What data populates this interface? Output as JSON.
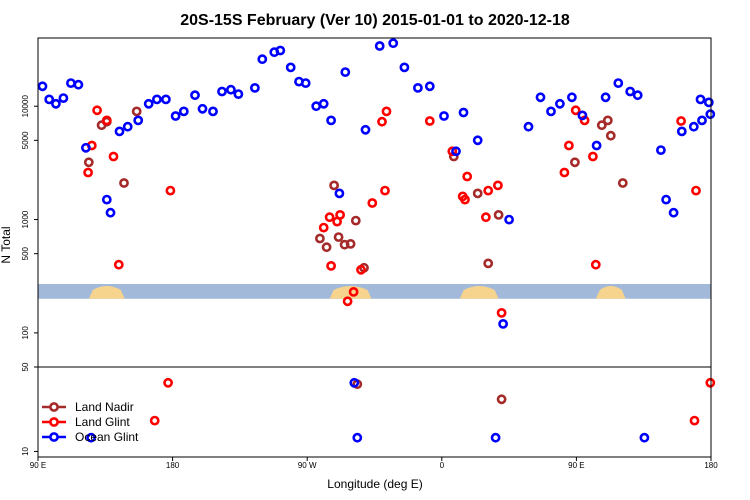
{
  "chart_data": {
    "type": "scatter",
    "title": "20S-15S February (Ver 10)   2015-01-01 to 2020-12-18",
    "xlabel": "Longitude (deg E)",
    "ylabel": "N Total",
    "xlim": [
      90,
      540
    ],
    "ylim": [
      10,
      40000
    ],
    "yscale": "log (broken: upper panel 50–40000, lower panel 10–50)",
    "grid": false,
    "legend_position": "bottom-left",
    "x_ticks": [
      {
        "value": 90,
        "label": "90 E"
      },
      {
        "value": 180,
        "label": "180"
      },
      {
        "value": 270,
        "label": "90 W"
      },
      {
        "value": 360,
        "label": "0"
      },
      {
        "value": 450,
        "label": "90 E"
      },
      {
        "value": 540,
        "label": "180"
      }
    ],
    "y_ticks": [
      {
        "value": 10000,
        "label": "10000"
      },
      {
        "value": 5000,
        "label": "5000"
      },
      {
        "value": 1000,
        "label": "1000"
      },
      {
        "value": 500,
        "label": "500"
      },
      {
        "value": 100,
        "label": "100"
      },
      {
        "value": 50,
        "label": "50"
      },
      {
        "value": 10,
        "label": "10"
      }
    ],
    "series": [
      {
        "name": "Land Nadir",
        "color": "#a52a2a",
        "points": [
          [
            132.5,
            6800
          ],
          [
            124,
            3200
          ],
          [
            147.5,
            2100
          ],
          [
            156,
            9000
          ],
          [
            136,
            7300
          ],
          [
            288,
            2000
          ],
          [
            278.5,
            680
          ],
          [
            283,
            570
          ],
          [
            291,
            700
          ],
          [
            295,
            600
          ],
          [
            299,
            610
          ],
          [
            302.5,
            980
          ],
          [
            308,
            375
          ],
          [
            368,
            3600
          ],
          [
            449,
            3200
          ],
          [
            481,
            2100
          ],
          [
            384,
            1700
          ],
          [
            391,
            410
          ],
          [
            398,
            1100
          ],
          [
            467,
            6800
          ],
          [
            473,
            5500
          ],
          [
            471,
            7500
          ],
          [
            303.5,
            36
          ],
          [
            400,
            27
          ]
        ]
      },
      {
        "name": "Land Glint",
        "color": "#ff0000",
        "points": [
          [
            123.5,
            2600
          ],
          [
            126,
            4500
          ],
          [
            129.5,
            9200
          ],
          [
            136,
            7500
          ],
          [
            140.5,
            3600
          ],
          [
            144,
            400
          ],
          [
            178.5,
            1800
          ],
          [
            285,
            1050
          ],
          [
            281,
            850
          ],
          [
            292,
            1100
          ],
          [
            286,
            390
          ],
          [
            290,
            960
          ],
          [
            297,
            190
          ],
          [
            306,
            360
          ],
          [
            301,
            230
          ],
          [
            313.5,
            1400
          ],
          [
            322,
            1800
          ],
          [
            323,
            9000
          ],
          [
            320,
            7300
          ],
          [
            352,
            7400
          ],
          [
            367,
            4000
          ],
          [
            374,
            1600
          ],
          [
            375.5,
            1500
          ],
          [
            377,
            2400
          ],
          [
            389.5,
            1050
          ],
          [
            391,
            1800
          ],
          [
            397.5,
            2000
          ],
          [
            400,
            150
          ],
          [
            442,
            2600
          ],
          [
            445,
            4500
          ],
          [
            449.5,
            9200
          ],
          [
            455.5,
            7500
          ],
          [
            461,
            3600
          ],
          [
            463,
            400
          ],
          [
            520,
            7400
          ],
          [
            530,
            1800
          ],
          [
            177,
            37
          ],
          [
            168,
            18
          ],
          [
            529,
            18
          ],
          [
            539.5,
            37
          ]
        ]
      },
      {
        "name": "Ocean Glint",
        "color": "#0000ff",
        "points": [
          [
            93,
            15000
          ],
          [
            97.5,
            11500
          ],
          [
            102,
            10500
          ],
          [
            107,
            11800
          ],
          [
            112,
            16000
          ],
          [
            117,
            15500
          ],
          [
            122,
            4300
          ],
          [
            125.5,
            13
          ],
          [
            136,
            1500
          ],
          [
            138.5,
            1150
          ],
          [
            144.5,
            6000
          ],
          [
            150,
            6600
          ],
          [
            157,
            7500
          ],
          [
            164,
            10500
          ],
          [
            169.5,
            11500
          ],
          [
            175.5,
            11500
          ],
          [
            182,
            8200
          ],
          [
            187.5,
            9000
          ],
          [
            195,
            12500
          ],
          [
            200,
            9500
          ],
          [
            207,
            9000
          ],
          [
            213,
            13500
          ],
          [
            219,
            14000
          ],
          [
            224,
            12800
          ],
          [
            235,
            14500
          ],
          [
            240,
            26000
          ],
          [
            248,
            30000
          ],
          [
            252,
            31000
          ],
          [
            259,
            22000
          ],
          [
            264.5,
            16500
          ],
          [
            269,
            16000
          ],
          [
            276,
            10000
          ],
          [
            281,
            10500
          ],
          [
            286,
            7500
          ],
          [
            291.5,
            1700
          ],
          [
            295.5,
            20000
          ],
          [
            301.5,
            37
          ],
          [
            303.5,
            13
          ],
          [
            309,
            6200
          ],
          [
            318.5,
            34000
          ],
          [
            327.5,
            36000
          ],
          [
            335,
            22000
          ],
          [
            344,
            14500
          ],
          [
            352,
            15000
          ],
          [
            361.5,
            8200
          ],
          [
            369.5,
            4000
          ],
          [
            374.5,
            8800
          ],
          [
            384,
            5000
          ],
          [
            396,
            13
          ],
          [
            401,
            120
          ],
          [
            405,
            1000
          ],
          [
            418,
            6600
          ],
          [
            426,
            12000
          ],
          [
            433,
            9000
          ],
          [
            439,
            10500
          ],
          [
            447,
            12000
          ],
          [
            454,
            8300
          ],
          [
            463.5,
            4500
          ],
          [
            469.5,
            12000
          ],
          [
            478,
            16000
          ],
          [
            486,
            13500
          ],
          [
            491,
            12500
          ],
          [
            495.5,
            13
          ],
          [
            506.5,
            4100
          ],
          [
            510,
            1500
          ],
          [
            515,
            1150
          ],
          [
            520.5,
            6000
          ],
          [
            528.5,
            6600
          ],
          [
            534,
            7500
          ],
          [
            538.5,
            10800
          ],
          [
            533,
            11500
          ],
          [
            539.5,
            8500
          ]
        ]
      }
    ],
    "bands": [
      {
        "name": "ocean-data-band",
        "color": "#a3b9d9",
        "y_range": [
          200,
          270
        ],
        "x_range": [
          90,
          540
        ]
      },
      {
        "name": "land-data-band",
        "color": "#f7d48e",
        "y_range": [
          200,
          270
        ],
        "x_ranges": [
          [
            124,
            148
          ],
          [
            285,
            313
          ],
          [
            372,
            398
          ],
          [
            463,
            483
          ]
        ]
      }
    ]
  }
}
